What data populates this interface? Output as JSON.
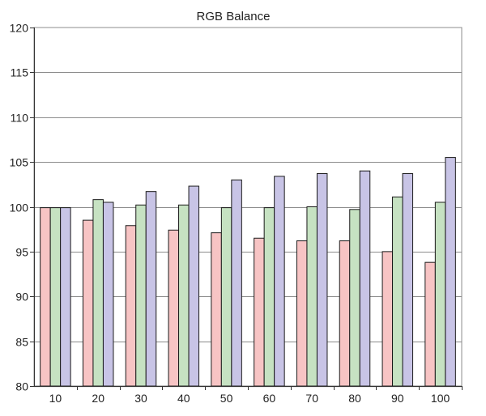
{
  "chart_data": {
    "type": "bar",
    "title": "RGB Balance",
    "xlabel": "",
    "ylabel": "",
    "categories": [
      "10",
      "20",
      "30",
      "40",
      "50",
      "60",
      "70",
      "80",
      "90",
      "100"
    ],
    "ylim": [
      80,
      120
    ],
    "yticks": [
      80,
      85,
      90,
      95,
      100,
      105,
      110,
      115,
      120
    ],
    "grid": true,
    "legend": "none",
    "series": [
      {
        "color": "#f7c4c4",
        "values": [
          99.9,
          98.5,
          97.9,
          97.4,
          97.1,
          96.5,
          96.2,
          96.2,
          95.0,
          93.8
        ]
      },
      {
        "color": "#c6e2c2",
        "values": [
          99.9,
          100.8,
          100.2,
          100.2,
          99.9,
          99.9,
          100.0,
          99.7,
          101.1,
          100.5
        ]
      },
      {
        "color": "#c8c4e6",
        "values": [
          99.9,
          100.5,
          101.7,
          102.3,
          103.0,
          103.4,
          103.7,
          104.0,
          103.7,
          105.5
        ]
      }
    ]
  }
}
